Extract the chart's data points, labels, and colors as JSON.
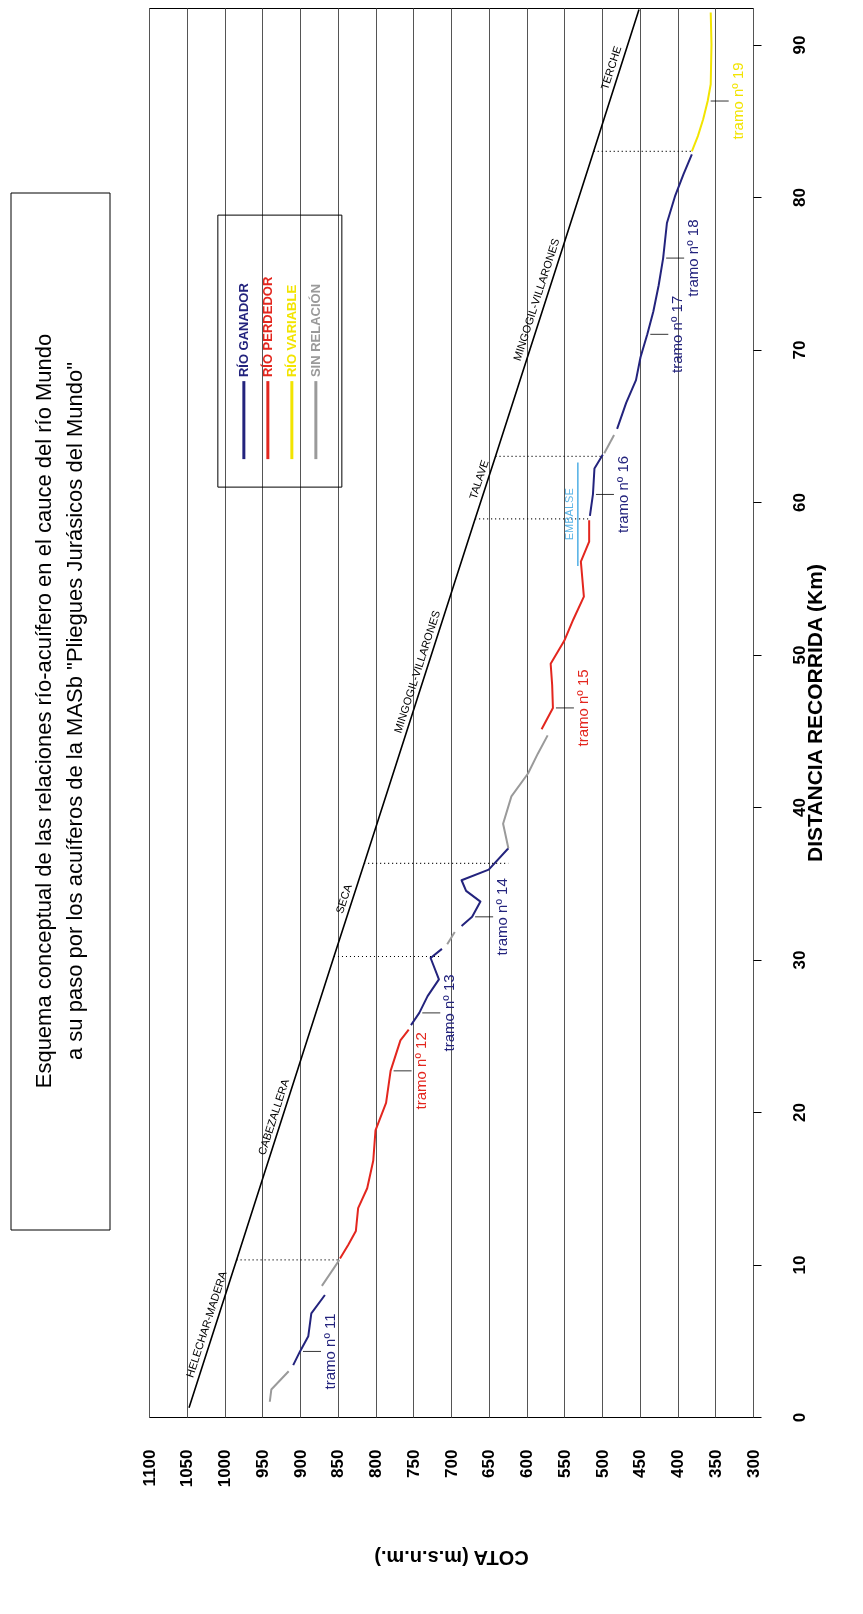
{
  "chart_data": {
    "type": "line",
    "title": "Esquema conceptual de las relaciones río-acuífero en el cauce del río Mundo\na su paso por los acuíferos de la MASb \"Pliegues Jurásicos del Mundo\"",
    "xlabel": "COTA (m.s.n.m.)",
    "ylabel": "DISTANCIA RECORRIDA (Km)",
    "xlim": [
      1100,
      300
    ],
    "xticks": [
      1100,
      1050,
      1000,
      950,
      900,
      850,
      800,
      750,
      700,
      650,
      600,
      550,
      500,
      450,
      400,
      350,
      300
    ],
    "ylim": [
      0,
      92.4
    ],
    "yticks": [
      0,
      10,
      20,
      30,
      40,
      50,
      60,
      70,
      80,
      90
    ],
    "grid": "x",
    "legend": "top left",
    "series": [
      {
        "name": "RÍO GANADOR",
        "color": "#23237d",
        "values": [
          3.4,
          4.3,
          5.3,
          6.8,
          8.0,
          null,
          25.7,
          26.5,
          27.6,
          28.7,
          30.1,
          30.7,
          null,
          32.2,
          32.8,
          33.8,
          34.5,
          35.2,
          35.9,
          37.3,
          null,
          59.1,
          60.5,
          62.2,
          63.1,
          null,
          64.8,
          66.5,
          68.0,
          69.5,
          71.0,
          72.5,
          74.2,
          76.0,
          78.3,
          80.1,
          81.5,
          82.8
        ],
        "x": [
          909,
          900,
          889,
          885,
          867,
          null,
          753,
          742,
          731,
          716,
          727,
          712,
          null,
          686,
          672,
          661,
          680,
          686,
          650,
          624,
          null,
          516,
          512,
          510,
          499,
          null,
          480,
          468,
          455,
          449,
          440,
          432,
          425,
          419,
          414,
          403,
          392,
          381
        ]
      },
      {
        "name": "RÍO PERDEDOR",
        "color": "#e3261e",
        "values": [
          10.4,
          11.3,
          12.2,
          13.7,
          15.0,
          16.8,
          18.8,
          20.6,
          22.7,
          24.7,
          25.4,
          null,
          45.1,
          46.5,
          48.0,
          49.4,
          50.9,
          52.3,
          53.8,
          56.1,
          57.4,
          58.8
        ],
        "x": [
          847,
          836,
          826,
          823,
          811,
          803,
          800,
          786,
          780,
          767,
          756,
          null,
          580,
          565,
          566,
          568,
          550,
          538,
          524,
          528,
          517,
          517
        ]
      },
      {
        "name": "RÍO VARIABLE",
        "color": "#f2e400",
        "values": [
          83.0,
          84.0,
          85.1,
          86.3,
          87.4,
          90.0,
          92.1
        ],
        "x": [
          381,
          373,
          366,
          360,
          356,
          355,
          356
        ]
      },
      {
        "name": "SIN RELACIÓN",
        "color": "#9a9a9a",
        "values": [
          1.0,
          1.8,
          3.0,
          null,
          8.6,
          9.7,
          10.3,
          null,
          31.0,
          31.8,
          null,
          37.3,
          38.9,
          40.7,
          42.2,
          43.5,
          44.7,
          null,
          63.2,
          64.4
        ],
        "x": [
          940,
          938,
          915,
          null,
          871,
          856,
          848,
          null,
          705,
          695,
          null,
          624,
          631,
          620,
          598,
          585,
          572,
          null,
          497,
          484
        ]
      },
      {
        "color": "#000000",
        "values": [
          0.6,
          10.3,
          30.2,
          36.3,
          58.9,
          63.0,
          83.0,
          92.3
        ],
        "x": [
          1047,
          984,
          855,
          815,
          668,
          641,
          511,
          451
        ]
      },
      {
        "color": "#000000",
        "line_style": "dotted",
        "values": [
          10.3,
          10.3,
          null,
          30.2,
          30.2,
          null,
          36.3,
          36.3,
          null,
          58.9,
          58.9,
          null,
          63.0,
          63.0,
          null,
          83.0,
          83.0
        ],
        "x": [
          984,
          848,
          null,
          855,
          712,
          null,
          815,
          624,
          null,
          668,
          517,
          null,
          641,
          499,
          null,
          511,
          381
        ]
      },
      {
        "color": "#5ab4e6",
        "values": [
          55.8,
          62.6
        ],
        "x": [
          532,
          532
        ]
      }
    ],
    "annotations": [
      {
        "text": "HELECHAR-MADERA",
        "y": 5.9,
        "x": 1013
      },
      {
        "text": "CABEZALLERA",
        "y": 19.5,
        "x": 924
      },
      {
        "text": "SECA",
        "y": 33.8,
        "x": 831
      },
      {
        "text": "MINGOGIL-VILLARONES",
        "y": 48.7,
        "x": 734
      },
      {
        "text": "TALAVE",
        "y": 61.3,
        "x": 652
      },
      {
        "text": "MINGOGIL-VILLARONES",
        "y": 73.1,
        "x": 576
      },
      {
        "text": "TERCHE",
        "y": 88.3,
        "x": 477
      },
      {
        "text": "EMBALSE",
        "y": 59.2,
        "x": 532
      },
      {
        "text": "tramo nº 11",
        "y": 4.3,
        "x": 900
      },
      {
        "text": "tramo nº 12",
        "y": 22.7,
        "x": 780
      },
      {
        "text": "tramo nº 13",
        "y": 26.5,
        "x": 742
      },
      {
        "text": "tramo nº 14",
        "y": 32.8,
        "x": 672
      },
      {
        "text": "tramo nº 15",
        "y": 46.5,
        "x": 565
      },
      {
        "text": "tramo nº 16",
        "y": 60.5,
        "x": 512
      },
      {
        "text": "tramo nº 17",
        "y": 71.0,
        "x": 440
      },
      {
        "text": "tramo nº 18",
        "y": 76.0,
        "x": 419
      },
      {
        "text": "tramo nº 19",
        "y": 86.3,
        "x": 360
      }
    ]
  }
}
